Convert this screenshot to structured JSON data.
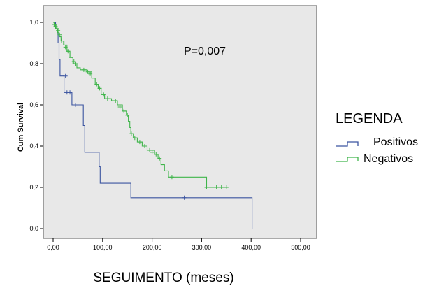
{
  "chart_data": {
    "type": "line",
    "title": "",
    "xlabel": "SEGUIMENTO (meses)",
    "ylabel": "Cum Survival",
    "xlim": [
      0,
      500
    ],
    "ylim": [
      0,
      1
    ],
    "x_ticks": [
      0,
      100,
      200,
      300,
      400,
      500
    ],
    "x_tick_labels": [
      "0,00",
      "100,00",
      "200,00",
      "300,00",
      "400,00",
      "500,00"
    ],
    "y_ticks": [
      0,
      0.2,
      0.4,
      0.6,
      0.8,
      1.0
    ],
    "y_tick_labels": [
      "0,0",
      "0,2",
      "0,4",
      "0,6",
      "0,8",
      "1,0"
    ],
    "grid": false,
    "legend_title": "LEGENDA",
    "legend_position": "right",
    "annotation": "P=0,007",
    "series": [
      {
        "name": "Positivos",
        "color": "#3b54a0",
        "steps": [
          [
            0,
            1.0
          ],
          [
            5,
            0.97
          ],
          [
            8,
            0.95
          ],
          [
            10,
            0.9
          ],
          [
            12,
            0.82
          ],
          [
            14,
            0.74
          ],
          [
            22,
            0.66
          ],
          [
            38,
            0.6
          ],
          [
            61,
            0.5
          ],
          [
            64,
            0.37
          ],
          [
            93,
            0.3
          ],
          [
            95,
            0.22
          ],
          [
            157,
            0.15
          ],
          [
            402,
            0.15
          ],
          [
            402,
            0.0
          ]
        ],
        "censored": [
          [
            12,
            0.89
          ],
          [
            25,
            0.74
          ],
          [
            28,
            0.66
          ],
          [
            34,
            0.66
          ],
          [
            45,
            0.6
          ],
          [
            265,
            0.15
          ]
        ]
      },
      {
        "name": "Negativos",
        "color": "#3fb54a",
        "steps": [
          [
            0,
            1.0
          ],
          [
            3,
            0.99
          ],
          [
            6,
            0.97
          ],
          [
            9,
            0.95
          ],
          [
            12,
            0.93
          ],
          [
            16,
            0.91
          ],
          [
            22,
            0.89
          ],
          [
            28,
            0.86
          ],
          [
            34,
            0.83
          ],
          [
            40,
            0.8
          ],
          [
            48,
            0.78
          ],
          [
            55,
            0.77
          ],
          [
            68,
            0.76
          ],
          [
            78,
            0.73
          ],
          [
            85,
            0.7
          ],
          [
            91,
            0.68
          ],
          [
            97,
            0.65
          ],
          [
            104,
            0.63
          ],
          [
            118,
            0.62
          ],
          [
            130,
            0.6
          ],
          [
            140,
            0.57
          ],
          [
            148,
            0.55
          ],
          [
            152,
            0.52
          ],
          [
            155,
            0.49
          ],
          [
            157,
            0.46
          ],
          [
            162,
            0.44
          ],
          [
            170,
            0.42
          ],
          [
            180,
            0.4
          ],
          [
            190,
            0.38
          ],
          [
            205,
            0.36
          ],
          [
            212,
            0.34
          ],
          [
            218,
            0.31
          ],
          [
            225,
            0.28
          ],
          [
            233,
            0.25
          ],
          [
            243,
            0.25
          ],
          [
            310,
            0.25
          ],
          [
            310,
            0.2
          ],
          [
            350,
            0.2
          ]
        ],
        "censored": [
          [
            2,
            0.99
          ],
          [
            5,
            0.98
          ],
          [
            8,
            0.97
          ],
          [
            10,
            0.96
          ],
          [
            13,
            0.94
          ],
          [
            17,
            0.91
          ],
          [
            21,
            0.9
          ],
          [
            25,
            0.88
          ],
          [
            30,
            0.86
          ],
          [
            36,
            0.83
          ],
          [
            42,
            0.81
          ],
          [
            46,
            0.8
          ],
          [
            62,
            0.77
          ],
          [
            70,
            0.76
          ],
          [
            75,
            0.75
          ],
          [
            88,
            0.7
          ],
          [
            94,
            0.68
          ],
          [
            102,
            0.65
          ],
          [
            110,
            0.63
          ],
          [
            126,
            0.62
          ],
          [
            135,
            0.59
          ],
          [
            143,
            0.57
          ],
          [
            150,
            0.55
          ],
          [
            158,
            0.46
          ],
          [
            165,
            0.44
          ],
          [
            175,
            0.42
          ],
          [
            185,
            0.4
          ],
          [
            195,
            0.38
          ],
          [
            200,
            0.37
          ],
          [
            208,
            0.36
          ],
          [
            215,
            0.34
          ],
          [
            240,
            0.25
          ],
          [
            310,
            0.2
          ],
          [
            330,
            0.2
          ],
          [
            340,
            0.2
          ],
          [
            350,
            0.2
          ]
        ]
      }
    ]
  }
}
